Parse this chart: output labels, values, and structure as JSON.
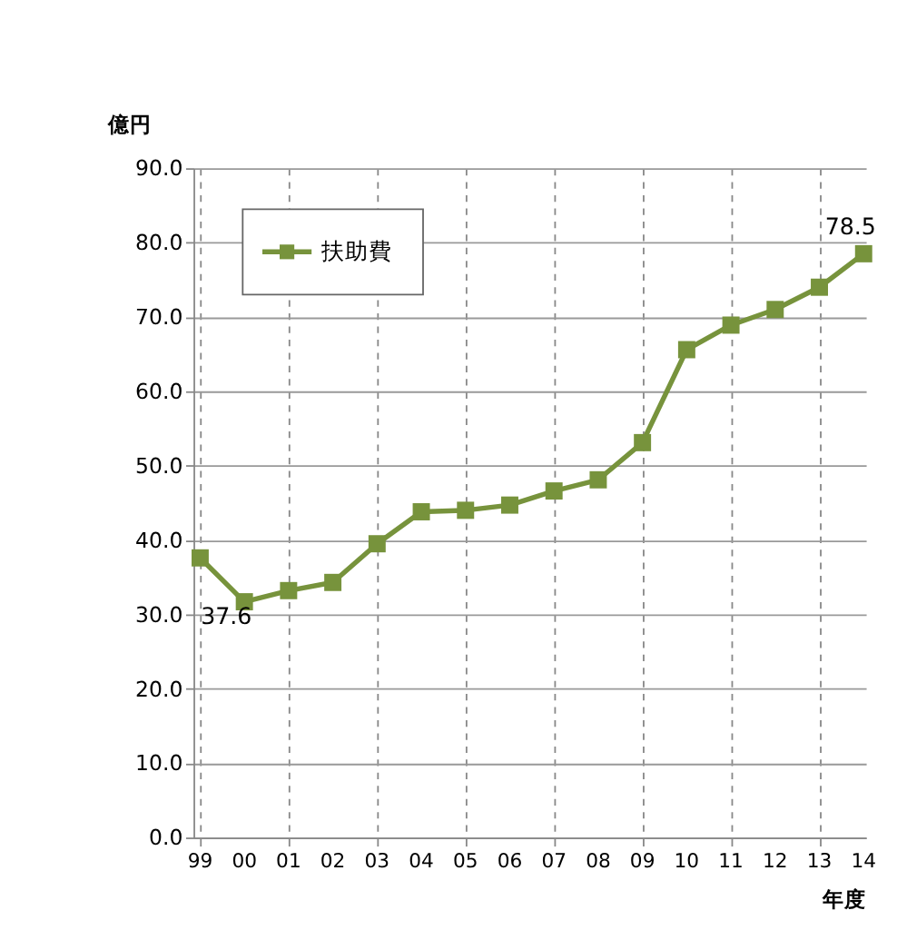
{
  "chart_data": {
    "type": "line",
    "ylabel": "億円",
    "xlabel": "年度",
    "categories": [
      "99",
      "00",
      "01",
      "02",
      "03",
      "04",
      "05",
      "06",
      "07",
      "08",
      "09",
      "10",
      "11",
      "12",
      "13",
      "14"
    ],
    "series": [
      {
        "name": "扶助費",
        "color": "#77933c",
        "values": [
          37.6,
          31.7,
          33.2,
          34.3,
          39.5,
          43.8,
          44.0,
          44.7,
          46.6,
          48.1,
          53.1,
          65.6,
          68.9,
          71.0,
          74.0,
          78.5
        ],
        "value_labels": [
          "37.6",
          null,
          null,
          null,
          null,
          null,
          null,
          null,
          null,
          null,
          null,
          null,
          null,
          null,
          null,
          "78.5"
        ]
      }
    ],
    "ylim": [
      0,
      90
    ],
    "yticks": [
      {
        "value": 0,
        "label": "0.0"
      },
      {
        "value": 10,
        "label": "10.0"
      },
      {
        "value": 20,
        "label": "20.0"
      },
      {
        "value": 30,
        "label": "30.0"
      },
      {
        "value": 40,
        "label": "40.0"
      },
      {
        "value": 50,
        "label": "50.0"
      },
      {
        "value": 60,
        "label": "60.0"
      },
      {
        "value": 70,
        "label": "70.0"
      },
      {
        "value": 80,
        "label": "80.0"
      },
      {
        "value": 90,
        "label": "90.0"
      }
    ],
    "grid": true,
    "legend": "top left",
    "marker": "square",
    "line_style": "solid"
  }
}
